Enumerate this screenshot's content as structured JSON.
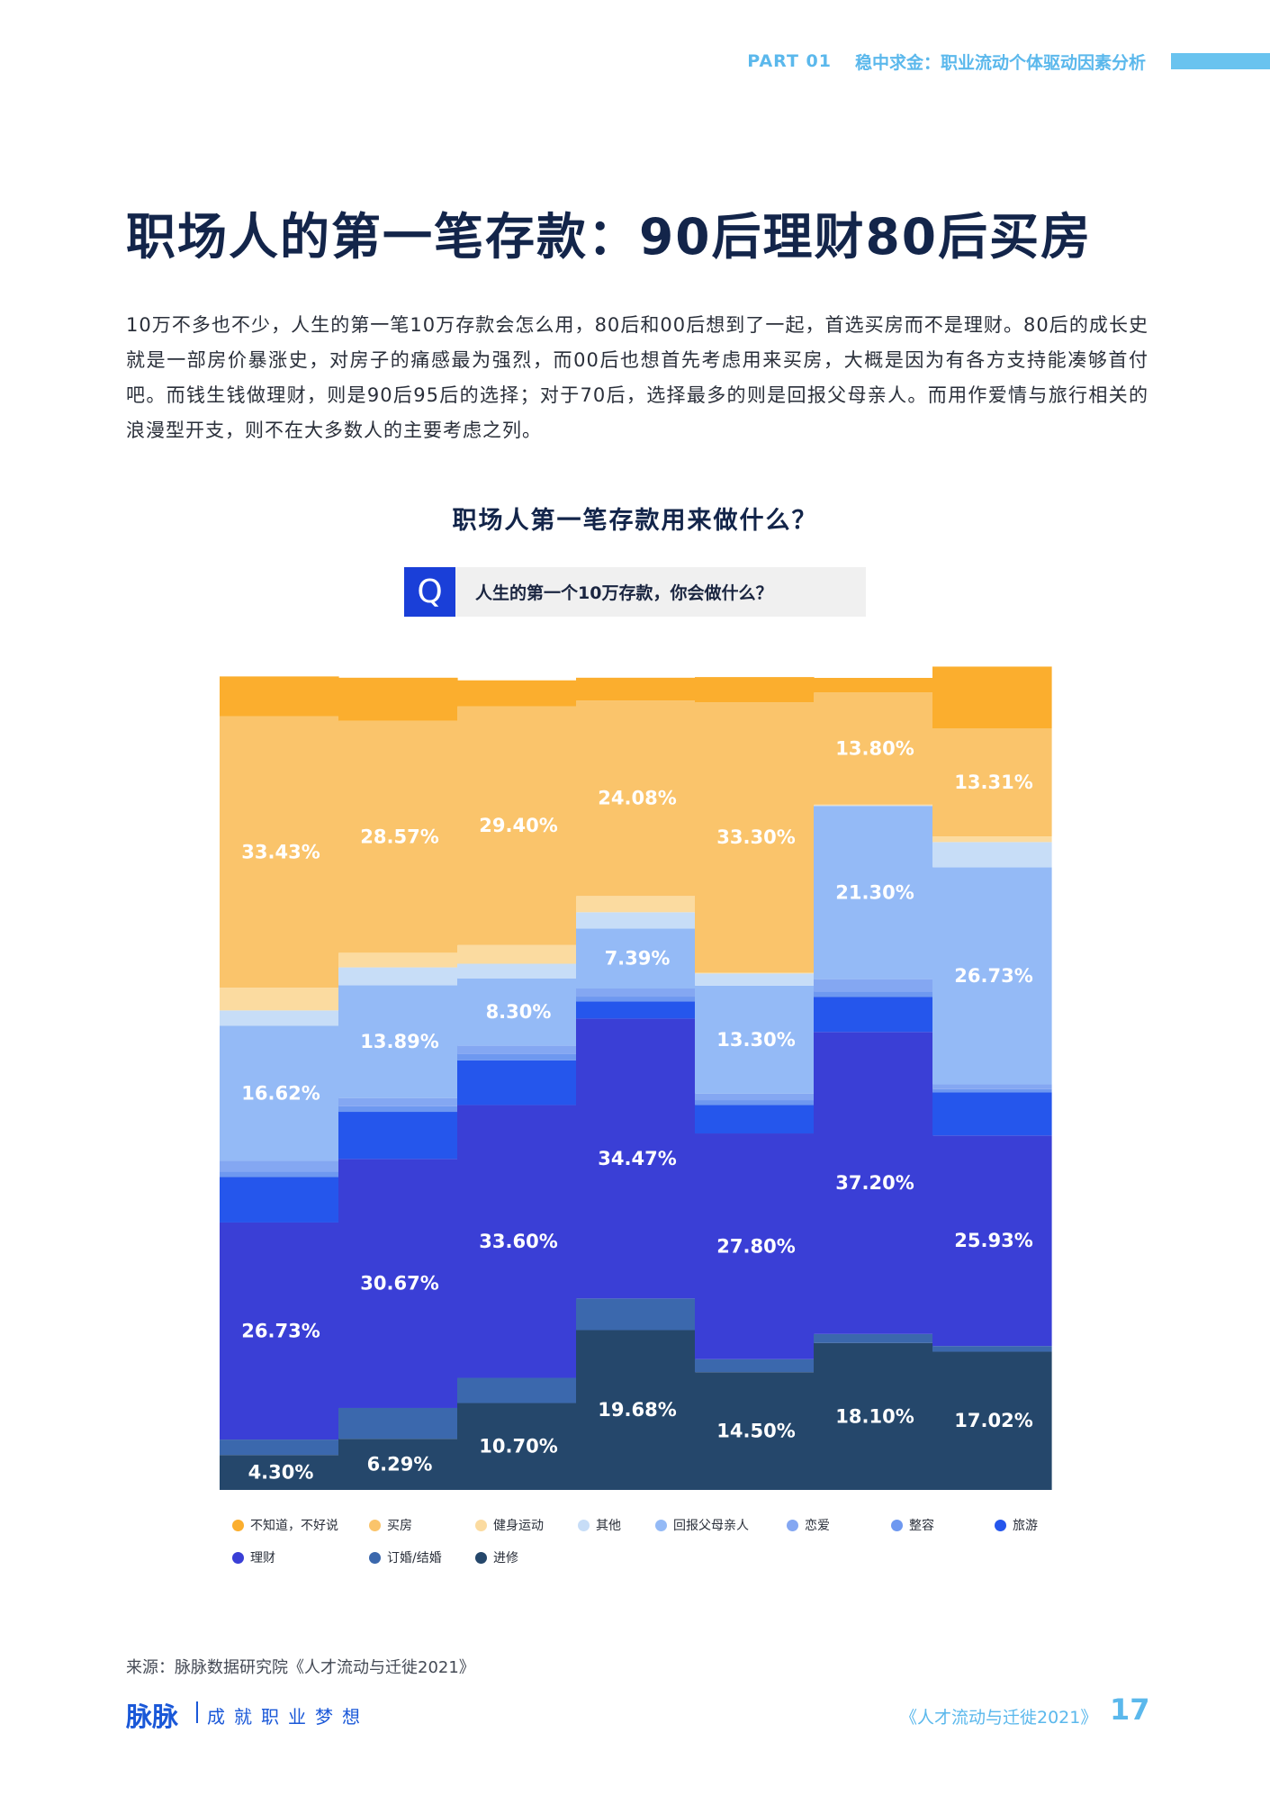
{
  "header": {
    "part": "PART 01",
    "section": "稳中求金：职业流动个体驱动因素分析"
  },
  "page_title": "职场人的第一笔存款：90后理财80后买房",
  "intro": "10万不多也不少，人生的第一笔10万存款会怎么用，80后和00后想到了一起，首选买房而不是理财。80后的成长史就是一部房价暴涨史，对房子的痛感最为强烈，而00后也想首先考虑用来买房，大概是因为有各方支持能凑够首付吧。而钱生钱做理财，则是90后95后的选择；对于70后，选择最多的则是回报父母亲人。而用作爱情与旅行相关的浪漫型开支，则不在大多数人的主要考虑之列。",
  "question": {
    "icon": "Q",
    "text": "人生的第一个10万存款，你会做什么？"
  },
  "chart_data": {
    "type": "bar",
    "stacked": true,
    "title": "职场人第一笔存款用来做什么？",
    "ylim": [
      0,
      100
    ],
    "legend_position": "bottom",
    "series": [
      {
        "name": "进修",
        "color": "#25476b",
        "values": [
          4.3,
          6.29,
          10.7,
          19.68,
          14.5,
          18.1,
          17.02
        ],
        "labels": [
          "4.30%",
          "6.29%",
          "10.70%",
          "19.68%",
          "14.50%",
          "18.10%",
          "17.02%"
        ]
      },
      {
        "name": "订婚/结婚",
        "color": "#3b68ad",
        "values": [
          1.9,
          3.8,
          3.1,
          3.9,
          1.6,
          1.1,
          0.7
        ],
        "labels": [
          "",
          "",
          "",
          "",
          "",
          "",
          ""
        ]
      },
      {
        "name": "理财",
        "color": "#3a3fd6",
        "values": [
          26.73,
          30.67,
          33.6,
          34.47,
          27.8,
          37.2,
          25.93
        ],
        "labels": [
          "26.73%",
          "30.67%",
          "33.60%",
          "34.47%",
          "27.80%",
          "37.20%",
          "25.93%"
        ]
      },
      {
        "name": "旅游",
        "color": "#2556ec",
        "values": [
          5.6,
          5.8,
          5.5,
          2.1,
          3.5,
          4.3,
          5.3
        ],
        "labels": [
          "",
          "",
          "",
          "",
          "",
          "",
          ""
        ]
      },
      {
        "name": "整容",
        "color": "#6e98f0",
        "values": [
          0.7,
          0.7,
          0.8,
          0.6,
          0.6,
          0.7,
          0.4
        ],
        "labels": [
          "",
          "",
          "",
          "",
          "",
          "",
          ""
        ]
      },
      {
        "name": "恋爱",
        "color": "#84a7f2",
        "values": [
          1.3,
          1.0,
          1.0,
          1.0,
          0.8,
          1.5,
          0.6
        ],
        "labels": [
          "",
          "",
          "",
          "",
          "",
          "",
          ""
        ]
      },
      {
        "name": "回报父母亲人",
        "color": "#94baf6",
        "values": [
          16.62,
          13.89,
          8.3,
          7.39,
          13.3,
          21.3,
          26.73
        ],
        "labels": [
          "16.62%",
          "13.89%",
          "8.30%",
          "7.39%",
          "13.30%",
          "21.30%",
          "26.73%"
        ]
      },
      {
        "name": "其他",
        "color": "#c7ddf7",
        "values": [
          1.9,
          2.2,
          1.8,
          2.0,
          1.5,
          0.1,
          3.1
        ],
        "labels": [
          "",
          "",
          "",
          "",
          "",
          "",
          ""
        ]
      },
      {
        "name": "健身运动",
        "color": "#fbdba0",
        "values": [
          2.8,
          1.8,
          2.3,
          2.0,
          0.1,
          0.1,
          0.7
        ],
        "labels": [
          "",
          "",
          "",
          "",
          "",
          "",
          ""
        ]
      },
      {
        "name": "买房",
        "color": "#fac46b",
        "values": [
          33.43,
          28.57,
          29.4,
          24.08,
          33.3,
          13.8,
          13.31
        ],
        "labels": [
          "33.43%",
          "28.57%",
          "29.40%",
          "24.08%",
          "33.30%",
          "13.80%",
          "13.31%"
        ]
      },
      {
        "name": "不知道，不好说",
        "color": "#fbae2e",
        "values": [
          4.9,
          5.3,
          3.2,
          2.8,
          3.1,
          1.8,
          7.6
        ],
        "labels": [
          "",
          "",
          "",
          "",
          "",
          "",
          ""
        ]
      }
    ]
  },
  "legend_order": [
    "不知道，不好说",
    "买房",
    "健身运动",
    "其他",
    "回报父母亲人",
    "恋爱",
    "整容",
    "旅游",
    "理财",
    "订婚/结婚",
    "进修"
  ],
  "source": "来源：脉脉数据研究院《人才流动与迁徙2021》",
  "footer": {
    "logo": "脉脉",
    "slogan": "成就职业梦想",
    "report": "《人才流动与迁徙2021》",
    "page": "17"
  }
}
